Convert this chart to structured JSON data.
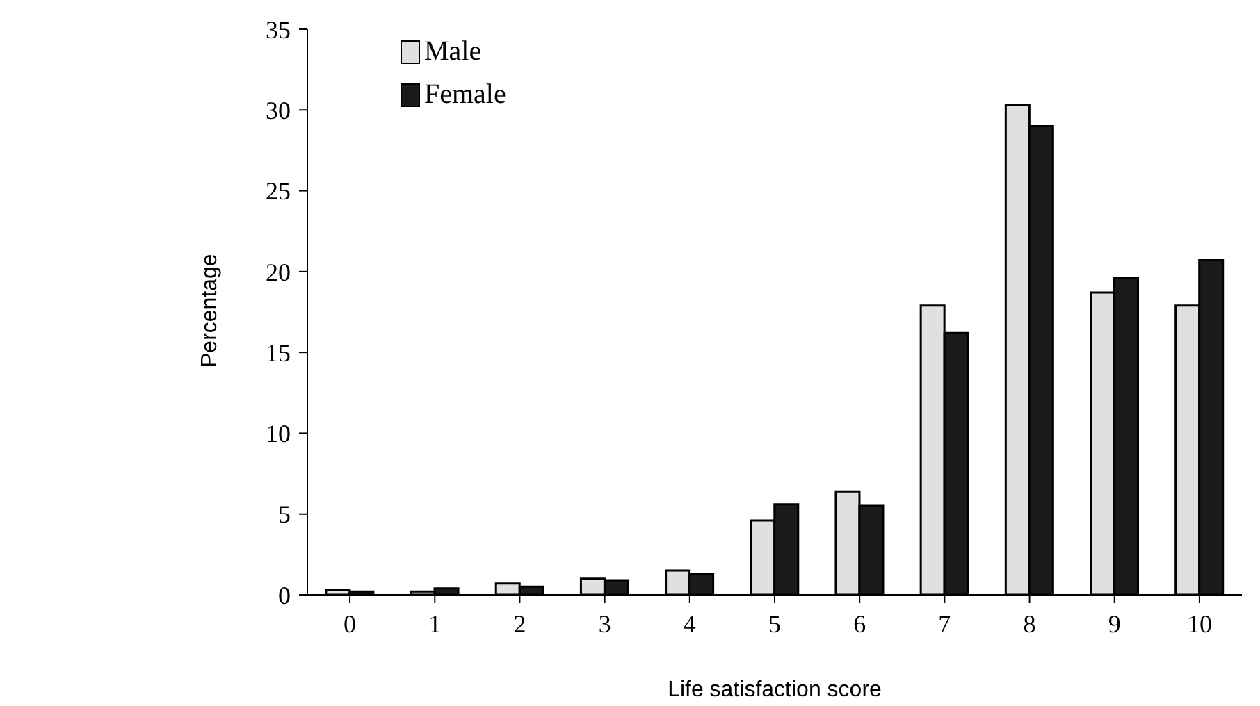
{
  "chart_data": {
    "type": "bar",
    "xlabel": "Life satisfaction score",
    "ylabel": "Percentage",
    "categories": [
      "0",
      "1",
      "2",
      "3",
      "4",
      "5",
      "6",
      "7",
      "8",
      "9",
      "10"
    ],
    "series": [
      {
        "name": "Male",
        "color": "#e0e0e0",
        "values": [
          0.3,
          0.2,
          0.7,
          1.0,
          1.5,
          4.6,
          6.4,
          17.9,
          30.3,
          18.7,
          17.9
        ]
      },
      {
        "name": "Female",
        "color": "#1a1a1a",
        "values": [
          0.2,
          0.4,
          0.5,
          0.9,
          1.3,
          5.6,
          5.5,
          16.2,
          29.0,
          19.6,
          20.7
        ]
      }
    ],
    "ylim": [
      0,
      35
    ],
    "yticks": [
      0,
      5,
      10,
      15,
      20,
      25,
      30,
      35
    ],
    "grid": false,
    "legend": "top left"
  }
}
